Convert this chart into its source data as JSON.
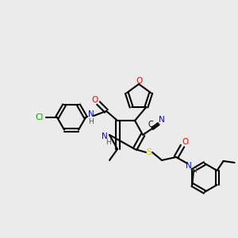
{
  "bg_color": "#ebebeb",
  "bond_color": "#000000",
  "colors": {
    "N": "#0000ff",
    "O": "#ff0000",
    "S": "#cccc00",
    "Cl": "#00aa00",
    "C": "#000000",
    "H": "#555555",
    "CN": "#000000"
  },
  "lw": 1.5,
  "lw_thin": 1.2
}
